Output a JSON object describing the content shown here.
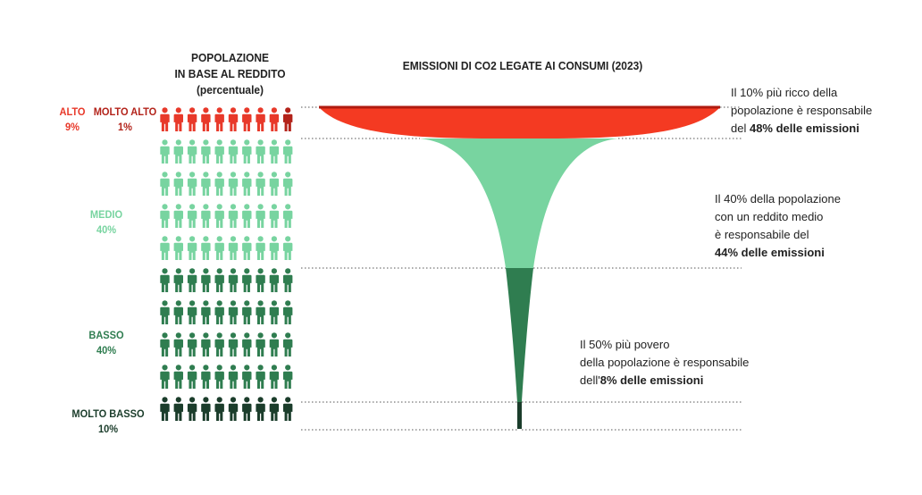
{
  "headers": {
    "population_line1": "POPOLAZIONE",
    "population_line2": "IN BASE AL REDDITO",
    "population_line3": "(percentuale)",
    "emissions": "EMISSIONI DI CO2 LEGATE AI CONSUMI (2023)"
  },
  "groups": {
    "alto": {
      "name": "ALTO",
      "pct": "9%",
      "color": "#e8392a"
    },
    "molto_alto": {
      "name": "MOLTO ALTO",
      "pct": "1%",
      "color": "#b3231a"
    },
    "medio": {
      "name": "MEDIO",
      "pct": "40%",
      "color": "#78d4a0"
    },
    "basso": {
      "name": "BASSO",
      "pct": "40%",
      "color": "#2f7d50"
    },
    "molto_basso": {
      "name": "MOLTO BASSO",
      "pct": "10%",
      "color": "#1b3d2b"
    }
  },
  "notes": {
    "top": {
      "l1": "Il 10% più ricco della",
      "l2": "popolazione è responsabile",
      "l3a": "del ",
      "l3b": "48% delle emissioni"
    },
    "mid": {
      "l1": "Il 40% della popolazione",
      "l2": "con un reddito medio",
      "l3": "è responsabile del",
      "l4": "44% delle emissioni"
    },
    "bot": {
      "l1": "Il 50% più povero",
      "l2": "della popolazione è responsabile",
      "l3a": "dell'",
      "l3b": "8% delle emissioni"
    }
  },
  "chart_data": {
    "type": "funnel",
    "title": "EMISSIONI DI CO2 LEGATE AI CONSUMI (2023)",
    "population_pictogram": {
      "rows": 10,
      "cols": 10,
      "rows_by_group": [
        {
          "group": "ALTO / MOLTO ALTO",
          "rows": 1,
          "highlight_count": 1
        },
        {
          "group": "MEDIO",
          "rows": 4
        },
        {
          "group": "BASSO",
          "rows": 4
        },
        {
          "group": "MOLTO BASSO",
          "rows": 1
        }
      ]
    },
    "categories": [
      "Ricco 10%",
      "Medio 40%",
      "Povero 50%"
    ],
    "series": [
      {
        "values": [
          48,
          44,
          8
        ]
      }
    ],
    "population_share": [
      10,
      40,
      50
    ],
    "colors": {
      "rich": "#f43a22",
      "rich_line": "#b01b10",
      "middle": "#78d4a0",
      "poor": "#2f7d50",
      "poorest": "#1b3d2b"
    }
  }
}
